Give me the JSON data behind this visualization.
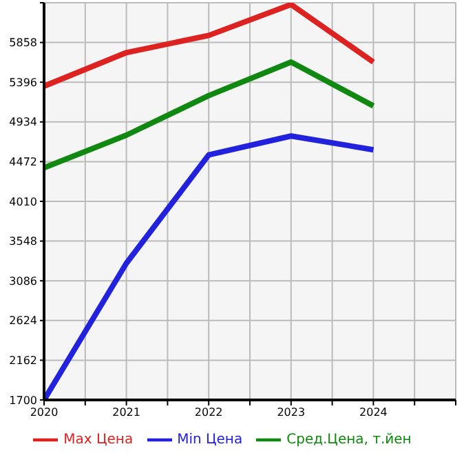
{
  "chart_data": {
    "type": "line",
    "x": [
      2020,
      2021,
      2022,
      2023,
      2024
    ],
    "series": [
      {
        "name": "Max Цена",
        "color": "#dd2222",
        "values": [
          5350,
          5740,
          5940,
          6300,
          5630
        ]
      },
      {
        "name": "Min Цена",
        "color": "#2222dd",
        "values": [
          1700,
          3290,
          4550,
          4770,
          4610
        ]
      },
      {
        "name": "Сред.Цена, т.йен",
        "color": "#118811",
        "values": [
          4400,
          4780,
          5240,
          5630,
          5120
        ]
      }
    ],
    "xlim": [
      2020,
      2025
    ],
    "xticks": [
      2020,
      {
        "value": 2020.5,
        "label": null
      },
      2021,
      {
        "value": 2021.5,
        "label": null
      },
      2022,
      {
        "value": 2022.5,
        "label": null
      },
      2023,
      {
        "value": 2023.5,
        "label": null
      },
      2024,
      {
        "value": 2024.5,
        "label": null
      },
      {
        "value": 2025,
        "label": null
      }
    ],
    "ylim": [
      1700,
      6320
    ],
    "yticks": [
      1700,
      2162,
      2624,
      3086,
      3548,
      4010,
      4472,
      4934,
      5396,
      5858,
      {
        "value": 6320,
        "label": null
      }
    ],
    "grid": true,
    "legend": "bottom",
    "marker": "none",
    "line_style": "solid"
  }
}
